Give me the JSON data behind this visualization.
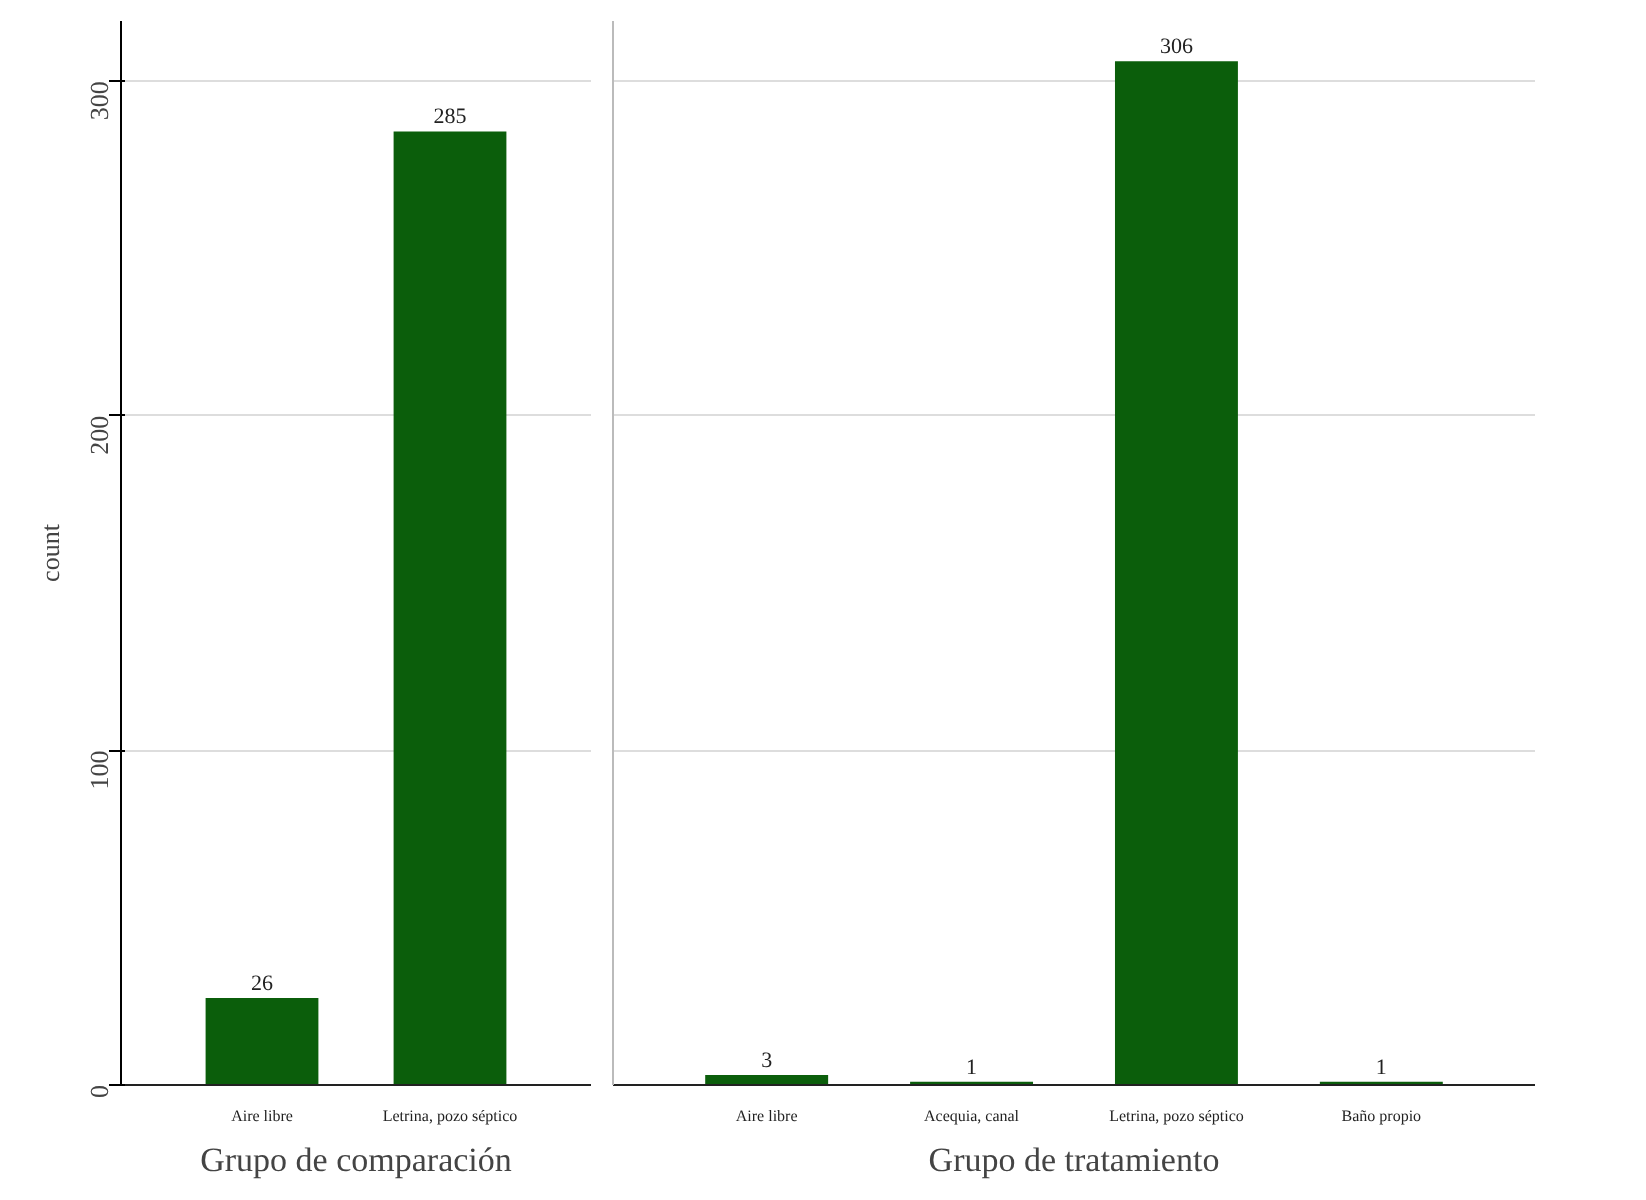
{
  "chart_data": [
    {
      "type": "bar",
      "xlabel": "Grupo de comparación",
      "ylabel": "count",
      "categories": [
        "Aire libre",
        "Letrina, pozo séptico"
      ],
      "values": [
        26,
        285
      ],
      "color": "#0b5e0b",
      "ylim": [
        0,
        318
      ],
      "yticks": [
        0,
        100,
        200,
        300
      ],
      "grid": "y",
      "data_labels": true
    },
    {
      "type": "bar",
      "xlabel": "Grupo de tratamiento",
      "categories": [
        "Aire libre",
        "Acequia, canal",
        "Letrina, pozo séptico",
        "Baño propio"
      ],
      "values": [
        3,
        1,
        306,
        1
      ],
      "color": "#0b5e0b",
      "ylim": [
        0,
        318
      ],
      "yticks": [
        0,
        100,
        200,
        300
      ],
      "grid": "y",
      "data_labels": true,
      "tick_labels": "x"
    }
  ]
}
